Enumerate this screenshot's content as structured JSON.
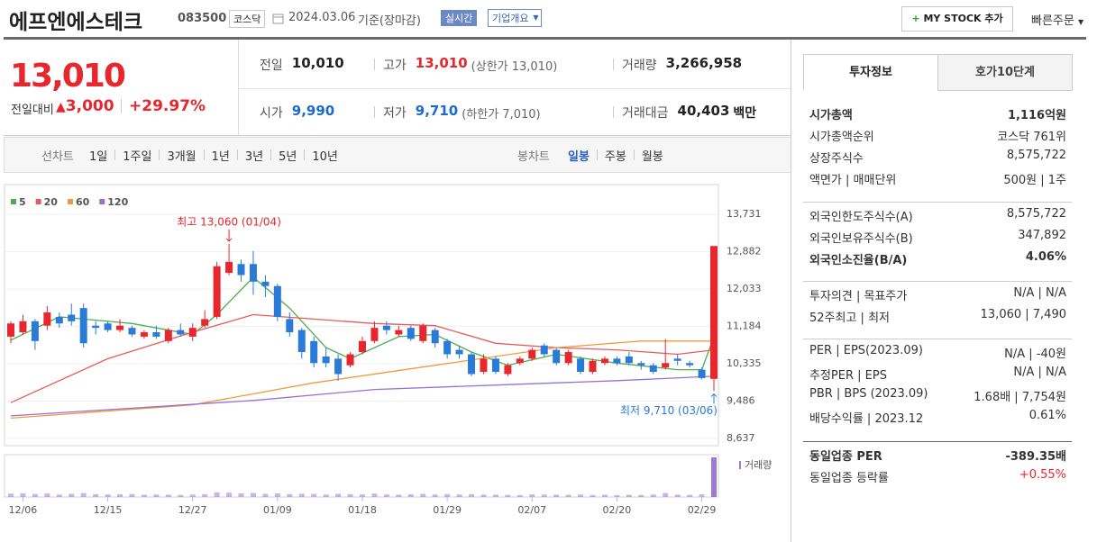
{
  "header": {
    "name": "에프엔에스테크",
    "code": "083500",
    "market": "코스닥",
    "date": "2024.03.06",
    "basis": "기준(장마감)",
    "realtime": "실시간",
    "company_info": "기업개요",
    "my_stock": "MY STOCK 추가",
    "quick_order": "빠른주문"
  },
  "price": {
    "current": "13,010",
    "change_label": "전일대비",
    "change": "3,000",
    "rate": "+29.97%"
  },
  "stats": [
    {
      "label": "전일",
      "value": "10,010"
    },
    {
      "label": "고가",
      "value": "13,010",
      "note": "(상한가 13,010)",
      "color": "#e8262e"
    },
    {
      "label": "거래량",
      "value": "3,266,958"
    },
    {
      "label": "시가",
      "value": "9,990",
      "color": "#1a6bd0"
    },
    {
      "label": "저가",
      "value": "9,710",
      "note": "(하한가 7,010)",
      "color": "#1a6bd0"
    },
    {
      "label": "거래대금",
      "value": "40,403",
      "unit": "백만"
    }
  ],
  "periods": {
    "line_label": "선차트",
    "line": [
      "1일",
      "1주일",
      "3개월",
      "1년",
      "3년",
      "5년",
      "10년"
    ],
    "candle_label": "봉차트",
    "candle": [
      "일봉",
      "주봉",
      "월봉"
    ]
  },
  "chart_data": {
    "type": "candlestick",
    "up_color": "#e8262e",
    "down_color": "#2a7ad8",
    "grid": true,
    "categories": [
      null,
      "12/06",
      null,
      null,
      null,
      null,
      null,
      null,
      "12/15",
      null,
      null,
      null,
      null,
      null,
      null,
      "12/27",
      null,
      null,
      null,
      null,
      null,
      null,
      "01/09",
      null,
      null,
      null,
      null,
      null,
      null,
      "01/18",
      null,
      null,
      null,
      null,
      null,
      null,
      "01/29",
      null,
      null,
      null,
      null,
      null,
      null,
      "02/07",
      null,
      null,
      null,
      null,
      null,
      null,
      "02/20",
      null,
      null,
      null,
      null,
      null,
      null,
      "02/29",
      null
    ],
    "open": [
      10950,
      11050,
      11300,
      11200,
      11400,
      11450,
      11600,
      11200,
      11250,
      11100,
      11150,
      10950,
      11050,
      10850,
      11100,
      10950,
      11200,
      11400,
      12400,
      12600,
      12600,
      12200,
      12100,
      11350,
      11100,
      10850,
      10500,
      10450,
      10300,
      10600,
      10850,
      11200,
      11000,
      11150,
      10850,
      11100,
      10850,
      10650,
      10550,
      10150,
      10450,
      10100,
      10350,
      10450,
      10750,
      10650,
      10350,
      10450,
      10150,
      10350,
      10450,
      10500,
      10350,
      10300,
      10250,
      10450,
      10350,
      10200,
      9990
    ],
    "high": [
      11300,
      11450,
      11350,
      11650,
      11500,
      11700,
      11700,
      11300,
      11300,
      11350,
      11200,
      11100,
      11200,
      11150,
      11250,
      11250,
      11550,
      12650,
      13060,
      12700,
      12900,
      12350,
      12150,
      11500,
      11150,
      10950,
      10700,
      10550,
      10600,
      10950,
      11300,
      11300,
      11200,
      11200,
      11250,
      11150,
      10900,
      10750,
      10600,
      10550,
      10500,
      10350,
      10500,
      10700,
      10800,
      10700,
      10650,
      10500,
      10450,
      10500,
      10500,
      10600,
      10400,
      10350,
      10900,
      10550,
      10400,
      10250,
      13010
    ],
    "low": [
      10800,
      11000,
      10650,
      11100,
      11150,
      11200,
      10700,
      11000,
      11050,
      11050,
      10950,
      10900,
      10900,
      10800,
      10950,
      10850,
      11150,
      11350,
      12350,
      12200,
      11900,
      11850,
      11300,
      10950,
      10450,
      10250,
      10250,
      9950,
      10250,
      10550,
      10800,
      11000,
      10950,
      10850,
      10800,
      10700,
      10450,
      10450,
      10050,
      10100,
      10100,
      10050,
      10300,
      10400,
      10500,
      10300,
      10300,
      10100,
      10100,
      10300,
      10300,
      10300,
      10200,
      10100,
      10200,
      10300,
      10250,
      9980,
      9710
    ],
    "close": [
      11250,
      11300,
      10850,
      11500,
      11250,
      11300,
      10800,
      11150,
      11100,
      11200,
      11000,
      11050,
      10950,
      11100,
      11000,
      11150,
      11350,
      12550,
      12650,
      12350,
      12200,
      12100,
      11400,
      11050,
      10600,
      10350,
      10350,
      10100,
      10550,
      10850,
      11150,
      11100,
      11100,
      10900,
      11200,
      10800,
      10550,
      10550,
      10100,
      10450,
      10150,
      10300,
      10450,
      10650,
      10550,
      10350,
      10600,
      10150,
      10400,
      10450,
      10350,
      10350,
      10300,
      10150,
      10350,
      10400,
      10300,
      10010,
      13010
    ],
    "volume_label": "거래량",
    "volume_color": "#9b7ad6",
    "volume": [
      280000,
      300000,
      250000,
      290000,
      200000,
      260000,
      320000,
      230000,
      210000,
      220000,
      240000,
      180000,
      200000,
      190000,
      170000,
      210000,
      230000,
      380000,
      360000,
      300000,
      330000,
      260000,
      290000,
      240000,
      270000,
      250000,
      200000,
      260000,
      230000,
      220000,
      280000,
      210000,
      190000,
      220000,
      260000,
      200000,
      240000,
      210000,
      230000,
      200000,
      190000,
      170000,
      160000,
      220000,
      200000,
      190000,
      180000,
      200000,
      170000,
      190000,
      160000,
      180000,
      170000,
      200000,
      330000,
      200000,
      180000,
      220000,
      3266958
    ],
    "series": [
      {
        "name": "5",
        "color": "#4cae4c",
        "x": [
          0,
          4,
          10,
          15,
          17,
          20,
          23,
          26,
          28,
          32,
          35,
          38,
          41,
          45,
          50,
          55,
          57,
          58
        ],
        "values": [
          10870,
          11400,
          11250,
          11000,
          11450,
          12300,
          11600,
          10700,
          10450,
          10950,
          11000,
          10600,
          10300,
          10550,
          10350,
          10200,
          10200,
          10950
        ]
      },
      {
        "name": "20",
        "color": "#ea5a5a",
        "x": [
          0,
          8,
          15,
          20,
          25,
          30,
          35,
          40,
          45,
          50,
          55,
          58
        ],
        "values": [
          9450,
          10450,
          11050,
          11450,
          11350,
          11250,
          11200,
          10800,
          10700,
          10650,
          10550,
          10650
        ]
      },
      {
        "name": "60",
        "color": "#f39a3c",
        "x": [
          0,
          15,
          25,
          35,
          45,
          52,
          58
        ],
        "values": [
          9100,
          9400,
          9900,
          10300,
          10700,
          10850,
          10850
        ]
      },
      {
        "name": "120",
        "color": "#9a6fd6",
        "x": [
          0,
          20,
          30,
          40,
          50,
          58
        ],
        "values": [
          9150,
          9500,
          9750,
          9850,
          9950,
          10050
        ]
      }
    ],
    "ylim": [
      8473,
      14406
    ],
    "yticks": [
      {
        "value": 13731,
        "label": "13,731"
      },
      {
        "value": 12882,
        "label": "12,882"
      },
      {
        "value": 12033,
        "label": "12,033"
      },
      {
        "value": 11184,
        "label": "11,184"
      },
      {
        "value": 10335,
        "label": "10,335"
      },
      {
        "value": 9486,
        "label": "9,486"
      },
      {
        "value": 8637,
        "label": "8,637"
      }
    ],
    "annotations": {
      "high": "최고 13,060 (01/04)",
      "low": "최저 9,710 (03/06)"
    }
  },
  "invest": {
    "tabs": [
      "투자정보",
      "호가10단계"
    ],
    "sections": [
      [
        {
          "label": "시가총액",
          "value": "1,116억원",
          "bold": true
        },
        {
          "label": "시가총액순위",
          "value": "코스닥 761위"
        },
        {
          "label": "상장주식수",
          "value": "8,575,722"
        },
        {
          "label": "액면가 | 매매단위",
          "value": "500원 | 1주"
        }
      ],
      [
        {
          "label": "외국인한도주식수(A)",
          "value": "8,575,722"
        },
        {
          "label": "외국인보유주식수(B)",
          "value": "347,892"
        },
        {
          "label": "외국인소진율(B/A)",
          "value": "4.06%",
          "bold": true
        }
      ],
      [
        {
          "label": "투자의견 | 목표주가",
          "value": "N/A | N/A"
        },
        {
          "label": "52주최고 | 최저",
          "value": "13,060 | 7,490"
        }
      ],
      [
        {
          "label": "PER | EPS(2023.09)",
          "value": "N/A | -40원"
        },
        {
          "label": "추정PER | EPS",
          "value": "N/A | N/A"
        },
        {
          "label": "PBR | BPS (2023.09)",
          "value": "1.68배 | 7,754원"
        },
        {
          "label": "배당수익률 | 2023.12",
          "value": "0.61%"
        }
      ],
      [
        {
          "label": "동일업종 PER",
          "value": "-389.35배",
          "bold": true
        },
        {
          "label": "동일업종 등락률",
          "value": "+0.55%",
          "color": "#e8262e"
        }
      ]
    ]
  }
}
